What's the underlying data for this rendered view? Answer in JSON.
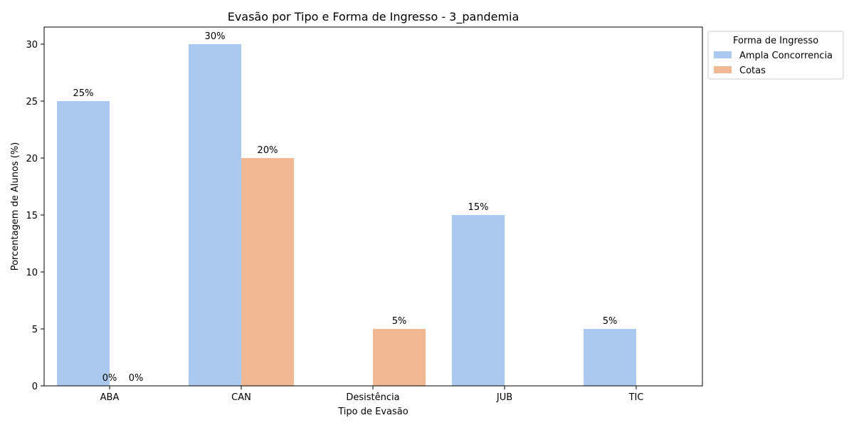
{
  "chart_data": {
    "type": "bar",
    "title": "Evasão por Tipo e Forma de Ingresso - 3_pandemia",
    "xlabel": "Tipo de Evasão",
    "ylabel": "Porcentagem de Alunos (%)",
    "categories": [
      "ABA",
      "CAN",
      "Desistência",
      "JUB",
      "TIC"
    ],
    "yticks": [
      "0",
      "5",
      "10",
      "15",
      "20",
      "25",
      "30"
    ],
    "ylim": [
      0,
      31.5
    ],
    "grid": false,
    "legend": {
      "title": "Forma de Ingresso",
      "placement": "outside-top-right"
    },
    "series": [
      {
        "name": "Ampla Concorrencia",
        "color": "#abc9ee",
        "values": [
          25,
          30,
          0,
          15,
          5
        ],
        "labels": [
          "25%",
          "30%",
          "",
          "15%",
          "5%"
        ]
      },
      {
        "name": "Cotas",
        "color": "#f0b993",
        "values": [
          0,
          20,
          5,
          0,
          0
        ],
        "labels": [
          "0%",
          "20%",
          "5%",
          "",
          ""
        ]
      }
    ],
    "extra_labels": [
      {
        "category": "ABA",
        "text": "0%"
      }
    ]
  }
}
